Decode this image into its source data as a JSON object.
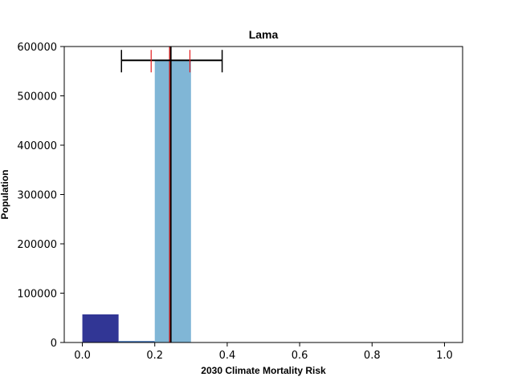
{
  "chart_data": {
    "type": "bar",
    "title": "Lama",
    "xlabel": "2030 Climate Mortality Risk",
    "ylabel": "Population",
    "xlim": [
      -0.05,
      1.05
    ],
    "ylim": [
      0,
      600000
    ],
    "x_ticks": [
      0.0,
      0.2,
      0.4,
      0.6,
      0.8,
      1.0
    ],
    "x_tick_labels": [
      "0.0",
      "0.2",
      "0.4",
      "0.6",
      "0.8",
      "1.0"
    ],
    "y_ticks": [
      0,
      100000,
      200000,
      300000,
      400000,
      500000,
      600000
    ],
    "y_tick_labels": [
      "0",
      "100000",
      "200000",
      "300000",
      "400000",
      "500000",
      "600000"
    ],
    "grid": false,
    "bars": [
      {
        "x0": 0.0,
        "x1": 0.1,
        "value": 57000,
        "color": "#313695"
      },
      {
        "x0": 0.1,
        "x1": 0.2,
        "value": 3000,
        "color": "#4575b4"
      },
      {
        "x0": 0.2,
        "x1": 0.3,
        "value": 572000,
        "color": "#80b6d6"
      },
      {
        "x0": 0.4,
        "x1": 0.5,
        "value": 800,
        "color": "#abd9e9"
      }
    ],
    "vertical_lines": [
      {
        "x": 0.243,
        "color": "#000000",
        "width": 3
      },
      {
        "x": 0.241,
        "color": "#e41a1c",
        "width": 1.2
      }
    ],
    "error_bars": [
      {
        "low": 0.108,
        "high": 0.386,
        "center": 0.243,
        "y": 572000,
        "color": "#000000"
      },
      {
        "low": 0.19,
        "high": 0.297,
        "center": 0.243,
        "y": 572000,
        "color": "#e41a1c",
        "caps_only": true
      }
    ]
  }
}
